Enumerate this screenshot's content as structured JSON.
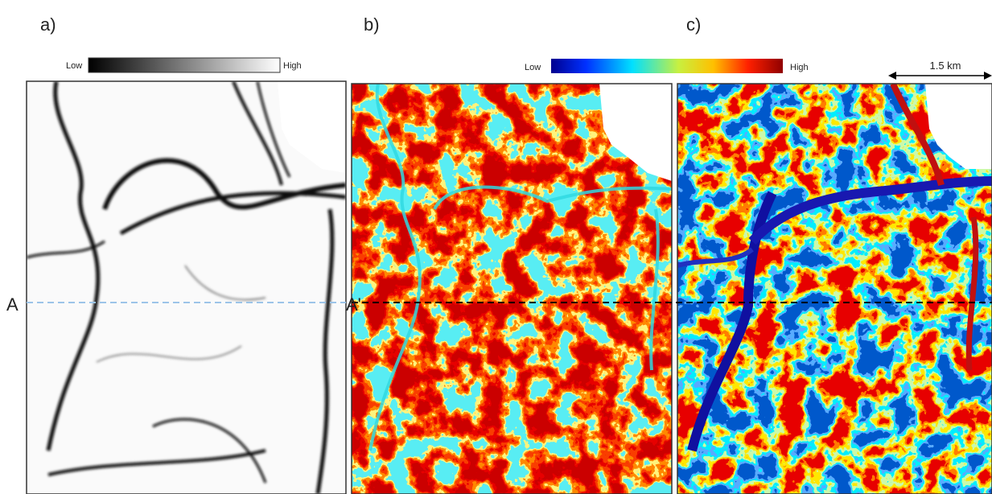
{
  "panels": [
    {
      "label": "a)"
    },
    {
      "label": "b)"
    },
    {
      "label": "c)"
    }
  ],
  "colorbars": [
    {
      "low": "Low",
      "high": "High"
    },
    {
      "low": "Low",
      "high": "High"
    }
  ],
  "scale_bar": {
    "label": "1.5 km"
  },
  "section": {
    "start": "A",
    "end": "A'"
  }
}
